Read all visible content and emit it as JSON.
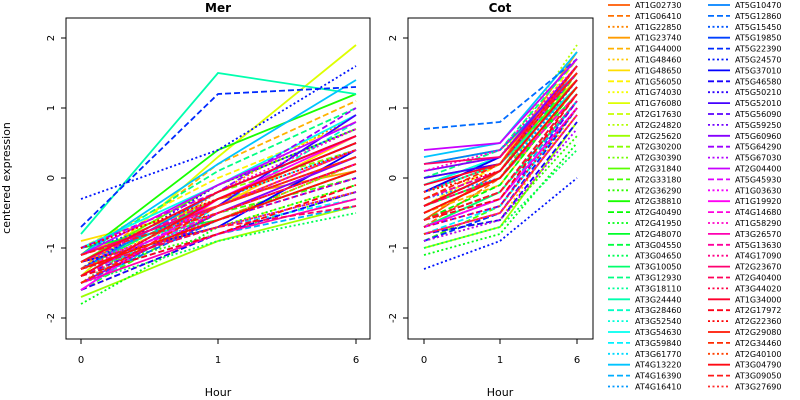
{
  "chart_data": [
    {
      "type": "line",
      "title": "Mer",
      "xlabel": "Hour",
      "ylabel": "centered expression",
      "x": [
        "0",
        "1",
        "6"
      ],
      "y_ticks": [
        -2,
        -1,
        0,
        1,
        2
      ],
      "ylim": [
        -2.1,
        2.1
      ],
      "grid": false,
      "legend_placement": "right",
      "series_source": "genes"
    },
    {
      "type": "line",
      "title": "Cot",
      "xlabel": "Hour",
      "ylabel": "",
      "x": [
        "0",
        "1",
        "6"
      ],
      "y_ticks": [
        -2,
        -1,
        0,
        1,
        2
      ],
      "ylim": [
        -2.1,
        2.1
      ],
      "grid": false,
      "legend_placement": "right",
      "series_source": "genes"
    }
  ],
  "genes": [
    {
      "name": "AT1G02730",
      "color": "#ff5a00",
      "dash": "solid",
      "mer": [
        -1.2,
        -0.4,
        0.4
      ],
      "cot": [
        -0.6,
        0.1,
        1.6
      ]
    },
    {
      "name": "AT1G06410",
      "color": "#ff7000",
      "dash": "dashed",
      "mer": [
        -1.4,
        -0.6,
        0.2
      ],
      "cot": [
        -0.7,
        0.0,
        1.2
      ]
    },
    {
      "name": "AT1G22850",
      "color": "#ff8600",
      "dash": "dotted",
      "mer": [
        -1.5,
        -0.2,
        0.9
      ],
      "cot": [
        -0.2,
        0.3,
        1.5
      ]
    },
    {
      "name": "AT1G23740",
      "color": "#ff9c00",
      "dash": "solid",
      "mer": [
        -1.1,
        -0.3,
        0.1
      ],
      "cot": [
        0.0,
        0.2,
        1.8
      ]
    },
    {
      "name": "AT1G44000",
      "color": "#ffb200",
      "dash": "dashed",
      "mer": [
        -1.3,
        0.2,
        1.1
      ],
      "cot": [
        -0.5,
        -0.1,
        1.3
      ]
    },
    {
      "name": "AT1G48460",
      "color": "#ffc800",
      "dash": "dotted",
      "mer": [
        -1.6,
        -0.8,
        -0.3
      ],
      "cot": [
        -0.9,
        -0.6,
        1.0
      ]
    },
    {
      "name": "AT1G48650",
      "color": "#ffde00",
      "dash": "solid",
      "mer": [
        -0.9,
        -0.4,
        0.6
      ],
      "cot": [
        0.2,
        0.4,
        1.4
      ]
    },
    {
      "name": "AT1G56050",
      "color": "#fff400",
      "dash": "dashed",
      "mer": [
        -1.0,
        0.0,
        0.8
      ],
      "cot": [
        -0.4,
        0.2,
        1.7
      ]
    },
    {
      "name": "AT1G74030",
      "color": "#f4ff00",
      "dash": "dotted",
      "mer": [
        -1.2,
        -0.5,
        0.3
      ],
      "cot": [
        -0.3,
        0.1,
        1.6
      ]
    },
    {
      "name": "AT1G76080",
      "color": "#deff00",
      "dash": "solid",
      "mer": [
        -1.4,
        0.3,
        1.9
      ],
      "cot": [
        -0.8,
        -0.5,
        0.9
      ]
    },
    {
      "name": "AT2G17630",
      "color": "#c8ff00",
      "dash": "dashed",
      "mer": [
        -1.3,
        -0.7,
        -0.1
      ],
      "cot": [
        -0.6,
        -0.2,
        1.2
      ]
    },
    {
      "name": "AT2G24820",
      "color": "#b2ff00",
      "dash": "dotted",
      "mer": [
        -1.1,
        -0.3,
        0.5
      ],
      "cot": [
        0.1,
        0.3,
        1.9
      ]
    },
    {
      "name": "AT2G25620",
      "color": "#9cff00",
      "dash": "solid",
      "mer": [
        -1.7,
        -0.9,
        -0.4
      ],
      "cot": [
        -1.0,
        -0.7,
        0.8
      ]
    },
    {
      "name": "AT2G30200",
      "color": "#86ff00",
      "dash": "dashed",
      "mer": [
        -1.0,
        -0.2,
        0.4
      ],
      "cot": [
        -0.5,
        0.0,
        1.5
      ]
    },
    {
      "name": "AT2G30390",
      "color": "#70ff00",
      "dash": "dotted",
      "mer": [
        -1.5,
        -0.6,
        0.2
      ],
      "cot": [
        -0.7,
        -0.3,
        1.1
      ]
    },
    {
      "name": "AT2G31840",
      "color": "#5aff00",
      "dash": "solid",
      "mer": [
        -1.2,
        -0.1,
        0.7
      ],
      "cot": [
        -0.2,
        0.2,
        1.4
      ]
    },
    {
      "name": "AT2G33180",
      "color": "#44ff00",
      "dash": "dashed",
      "mer": [
        -1.6,
        -0.5,
        0.0
      ],
      "cot": [
        -0.9,
        -0.4,
        1.0
      ]
    },
    {
      "name": "AT2G36290",
      "color": "#2eff00",
      "dash": "dotted",
      "mer": [
        -1.3,
        -0.8,
        -0.2
      ],
      "cot": [
        -0.8,
        -0.6,
        0.6
      ]
    },
    {
      "name": "AT2G38810",
      "color": "#18ff00",
      "dash": "solid",
      "mer": [
        -1.1,
        0.4,
        1.2
      ],
      "cot": [
        -0.1,
        0.3,
        1.6
      ]
    },
    {
      "name": "AT2G40490",
      "color": "#02ff00",
      "dash": "dashed",
      "mer": [
        -1.4,
        -0.4,
        0.3
      ],
      "cot": [
        -0.6,
        -0.1,
        1.3
      ]
    },
    {
      "name": "AT2G41950",
      "color": "#00ff14",
      "dash": "dotted",
      "mer": [
        -1.8,
        -0.7,
        -0.1
      ],
      "cot": [
        -1.1,
        -0.8,
        0.5
      ]
    },
    {
      "name": "AT2G48070",
      "color": "#00ff2a",
      "dash": "solid",
      "mer": [
        -1.0,
        -0.6,
        0.1
      ],
      "cot": [
        -0.4,
        0.0,
        1.2
      ]
    },
    {
      "name": "AT3G04550",
      "color": "#00ff40",
      "dash": "dashed",
      "mer": [
        -1.2,
        -0.2,
        0.6
      ],
      "cot": [
        -0.3,
        0.1,
        1.5
      ]
    },
    {
      "name": "AT3G04650",
      "color": "#00ff56",
      "dash": "dotted",
      "mer": [
        -1.5,
        -0.9,
        -0.5
      ],
      "cot": [
        -1.0,
        -0.7,
        0.4
      ]
    },
    {
      "name": "AT3G10050",
      "color": "#00ff6c",
      "dash": "solid",
      "mer": [
        -1.3,
        -0.3,
        0.5
      ],
      "cot": [
        -0.7,
        -0.2,
        1.1
      ]
    },
    {
      "name": "AT3G12930",
      "color": "#00ff82",
      "dash": "dashed",
      "mer": [
        -1.1,
        0.1,
        1.0
      ],
      "cot": [
        0.0,
        0.4,
        1.7
      ]
    },
    {
      "name": "AT3G18110",
      "color": "#00ff98",
      "dash": "dotted",
      "mer": [
        -1.4,
        -0.5,
        0.2
      ],
      "cot": [
        -0.6,
        -0.3,
        1.0
      ]
    },
    {
      "name": "AT3G24440",
      "color": "#00ffae",
      "dash": "solid",
      "mer": [
        -0.8,
        1.5,
        1.2
      ],
      "cot": [
        -0.2,
        0.2,
        1.3
      ]
    },
    {
      "name": "AT3G28460",
      "color": "#00ffc4",
      "dash": "dashed",
      "mer": [
        -1.6,
        -0.4,
        0.8
      ],
      "cot": [
        -0.9,
        -0.5,
        0.9
      ]
    },
    {
      "name": "AT3G52540",
      "color": "#00ffda",
      "dash": "dotted",
      "mer": [
        -1.2,
        -0.6,
        0.0
      ],
      "cot": [
        -0.5,
        0.0,
        1.4
      ]
    },
    {
      "name": "AT3G54630",
      "color": "#00fff0",
      "dash": "solid",
      "mer": [
        -1.0,
        -0.1,
        0.9
      ],
      "cot": [
        -0.1,
        0.3,
        1.6
      ]
    },
    {
      "name": "AT3G59840",
      "color": "#00f0ff",
      "dash": "dashed",
      "mer": [
        -1.3,
        -0.7,
        -0.3
      ],
      "cot": [
        -0.8,
        -0.4,
        1.0
      ]
    },
    {
      "name": "AT3G61770",
      "color": "#00daff",
      "dash": "dotted",
      "mer": [
        -1.5,
        -0.3,
        0.4
      ],
      "cot": [
        -0.4,
        0.1,
        1.3
      ]
    },
    {
      "name": "AT4G13220",
      "color": "#00c4ff",
      "dash": "solid",
      "mer": [
        -1.1,
        0.2,
        1.4
      ],
      "cot": [
        0.3,
        0.5,
        1.8
      ]
    },
    {
      "name": "AT4G16390",
      "color": "#00aeff",
      "dash": "dashed",
      "mer": [
        -1.4,
        -0.8,
        -0.4
      ],
      "cot": [
        -0.7,
        -0.3,
        1.1
      ]
    },
    {
      "name": "AT4G16410",
      "color": "#0098ff",
      "dash": "dotted",
      "mer": [
        -1.2,
        -0.4,
        0.3
      ],
      "cot": [
        -0.3,
        0.0,
        1.4
      ]
    },
    {
      "name": "AT5G10470",
      "color": "#0082ff",
      "dash": "solid",
      "mer": [
        -1.3,
        -0.2,
        0.6
      ],
      "cot": [
        0.2,
        0.4,
        1.5
      ]
    },
    {
      "name": "AT5G12860",
      "color": "#006cff",
      "dash": "dashed",
      "mer": [
        -1.5,
        -0.6,
        0.1
      ],
      "cot": [
        0.7,
        0.8,
        1.7
      ]
    },
    {
      "name": "AT5G15450",
      "color": "#0056ff",
      "dash": "dotted",
      "mer": [
        -1.0,
        -0.5,
        0.2
      ],
      "cot": [
        -0.6,
        -0.2,
        1.2
      ]
    },
    {
      "name": "AT5G19850",
      "color": "#0040ff",
      "dash": "solid",
      "mer": [
        -1.4,
        -0.3,
        0.5
      ],
      "cot": [
        -0.4,
        0.1,
        1.4
      ]
    },
    {
      "name": "AT5G22390",
      "color": "#002aff",
      "dash": "dashed",
      "mer": [
        -0.7,
        1.2,
        1.3
      ],
      "cot": [
        -0.9,
        -0.5,
        1.0
      ]
    },
    {
      "name": "AT5G24570",
      "color": "#0014ff",
      "dash": "dotted",
      "mer": [
        -0.3,
        0.4,
        1.6
      ],
      "cot": [
        -1.3,
        -0.9,
        0.0
      ]
    },
    {
      "name": "AT5G37010",
      "color": "#0200ff",
      "dash": "solid",
      "mer": [
        -1.2,
        -0.7,
        0.4
      ],
      "cot": [
        -0.2,
        0.3,
        1.6
      ]
    },
    {
      "name": "AT5G46580",
      "color": "#1800ff",
      "dash": "dashed",
      "mer": [
        -1.6,
        -0.8,
        -0.2
      ],
      "cot": [
        -0.8,
        -0.6,
        0.8
      ]
    },
    {
      "name": "AT5G50210",
      "color": "#2e00ff",
      "dash": "dotted",
      "mer": [
        -1.3,
        -0.1,
        0.7
      ],
      "cot": [
        -0.5,
        0.0,
        1.3
      ]
    },
    {
      "name": "AT5G52010",
      "color": "#4400ff",
      "dash": "solid",
      "mer": [
        -1.1,
        -0.4,
        0.9
      ],
      "cot": [
        0.0,
        0.2,
        1.5
      ]
    },
    {
      "name": "AT5G56090",
      "color": "#5a00ff",
      "dash": "dashed",
      "mer": [
        -1.4,
        -0.6,
        0.0
      ],
      "cot": [
        -0.7,
        -0.4,
        1.1
      ]
    },
    {
      "name": "AT5G59250",
      "color": "#7000ff",
      "dash": "dotted",
      "mer": [
        -1.2,
        -0.3,
        0.5
      ],
      "cot": [
        -0.3,
        0.1,
        1.4
      ]
    },
    {
      "name": "AT5G60960",
      "color": "#8600ff",
      "dash": "solid",
      "mer": [
        -1.5,
        -0.5,
        0.3
      ],
      "cot": [
        0.1,
        0.3,
        1.6
      ]
    },
    {
      "name": "AT5G64290",
      "color": "#9c00ff",
      "dash": "dashed",
      "mer": [
        -1.0,
        -0.2,
        1.0
      ],
      "cot": [
        -0.6,
        -0.2,
        1.2
      ]
    },
    {
      "name": "AT5G67030",
      "color": "#b200ff",
      "dash": "dotted",
      "mer": [
        -1.3,
        -0.7,
        -0.2
      ],
      "cot": [
        -0.9,
        -0.6,
        0.7
      ]
    },
    {
      "name": "AT2G04400",
      "color": "#c800ff",
      "dash": "solid",
      "mer": [
        -1.1,
        -0.1,
        0.8
      ],
      "cot": [
        0.4,
        0.5,
        1.7
      ]
    },
    {
      "name": "AT5G45930",
      "color": "#de00ff",
      "dash": "dashed",
      "mer": [
        -1.4,
        -0.4,
        0.4
      ],
      "cot": [
        -0.4,
        0.0,
        1.3
      ]
    },
    {
      "name": "AT1G03630",
      "color": "#f400ff",
      "dash": "dotted",
      "mer": [
        -1.2,
        -0.6,
        0.1
      ],
      "cot": [
        -0.2,
        0.2,
        1.5
      ]
    },
    {
      "name": "AT1G19920",
      "color": "#ff00f4",
      "dash": "solid",
      "mer": [
        -1.6,
        -0.3,
        0.6
      ],
      "cot": [
        -0.7,
        -0.3,
        1.0
      ]
    },
    {
      "name": "AT4G14680",
      "color": "#ff00de",
      "dash": "dashed",
      "mer": [
        -1.3,
        -0.5,
        0.2
      ],
      "cot": [
        -0.5,
        0.0,
        1.2
      ]
    },
    {
      "name": "AT1G58290",
      "color": "#ff00c8",
      "dash": "dotted",
      "mer": [
        -1.0,
        -0.2,
        0.7
      ],
      "cot": [
        0.1,
        0.4,
        1.6
      ]
    },
    {
      "name": "AT3G26570",
      "color": "#ff00b2",
      "dash": "solid",
      "mer": [
        -1.5,
        -0.8,
        -0.3
      ],
      "cot": [
        -0.8,
        -0.5,
        0.9
      ]
    },
    {
      "name": "AT5G13630",
      "color": "#ff009c",
      "dash": "dashed",
      "mer": [
        -1.2,
        -0.3,
        0.5
      ],
      "cot": [
        -0.3,
        0.1,
        1.4
      ]
    },
    {
      "name": "AT4G17090",
      "color": "#ff0086",
      "dash": "dotted",
      "mer": [
        -1.4,
        -0.6,
        0.0
      ],
      "cot": [
        -0.6,
        -0.2,
        1.1
      ]
    },
    {
      "name": "AT2G23670",
      "color": "#ff0070",
      "dash": "solid",
      "mer": [
        -1.1,
        -0.4,
        0.3
      ],
      "cot": [
        0.2,
        0.3,
        1.5
      ]
    },
    {
      "name": "AT2G40400",
      "color": "#ff005a",
      "dash": "dashed",
      "mer": [
        -1.3,
        -0.7,
        -0.4
      ],
      "cot": [
        -0.4,
        0.0,
        1.3
      ]
    },
    {
      "name": "AT3G44020",
      "color": "#ff0044",
      "dash": "dotted",
      "mer": [
        -1.5,
        -0.5,
        0.2
      ],
      "cot": [
        -0.7,
        -0.4,
        1.0
      ]
    },
    {
      "name": "AT1G34000",
      "color": "#ff002e",
      "dash": "solid",
      "mer": [
        -1.2,
        -0.2,
        0.6
      ],
      "cot": [
        -0.1,
        0.2,
        1.6
      ]
    },
    {
      "name": "AT2G17972",
      "color": "#ff0018",
      "dash": "dashed",
      "mer": [
        -1.4,
        -0.8,
        -0.1
      ],
      "cot": [
        -0.6,
        -0.3,
        1.2
      ]
    },
    {
      "name": "AT2G22360",
      "color": "#ff0002",
      "dash": "dotted",
      "mer": [
        -1.0,
        -0.3,
        0.4
      ],
      "cot": [
        -0.2,
        0.1,
        1.4
      ]
    },
    {
      "name": "AT2G29080",
      "color": "#ff1400",
      "dash": "solid",
      "mer": [
        -1.3,
        -0.6,
        0.1
      ],
      "cot": [
        -0.5,
        0.0,
        1.3
      ]
    },
    {
      "name": "AT2G34460",
      "color": "#ff2a00",
      "dash": "dashed",
      "mer": [
        -1.5,
        -0.4,
        0.3
      ],
      "cot": [
        -0.3,
        0.2,
        1.5
      ]
    },
    {
      "name": "AT2G40100",
      "color": "#ff4000",
      "dash": "dotted",
      "mer": [
        -1.2,
        -0.7,
        -0.2
      ],
      "cot": [
        -0.8,
        -0.5,
        0.9
      ]
    },
    {
      "name": "AT3G04790",
      "color": "#ff0a14",
      "dash": "solid",
      "mer": [
        -1.4,
        -0.3,
        0.5
      ],
      "cot": [
        -0.4,
        0.1,
        1.4
      ]
    },
    {
      "name": "AT3G09050",
      "color": "#ff1a1a",
      "dash": "dashed",
      "mer": [
        -1.1,
        -0.5,
        0.2
      ],
      "cot": [
        -0.6,
        -0.2,
        1.2
      ]
    },
    {
      "name": "AT3G27690",
      "color": "#ff2a2a",
      "dash": "dotted",
      "mer": [
        -1.3,
        -0.4,
        0.4
      ],
      "cot": [
        -0.2,
        0.2,
        1.6
      ]
    }
  ]
}
